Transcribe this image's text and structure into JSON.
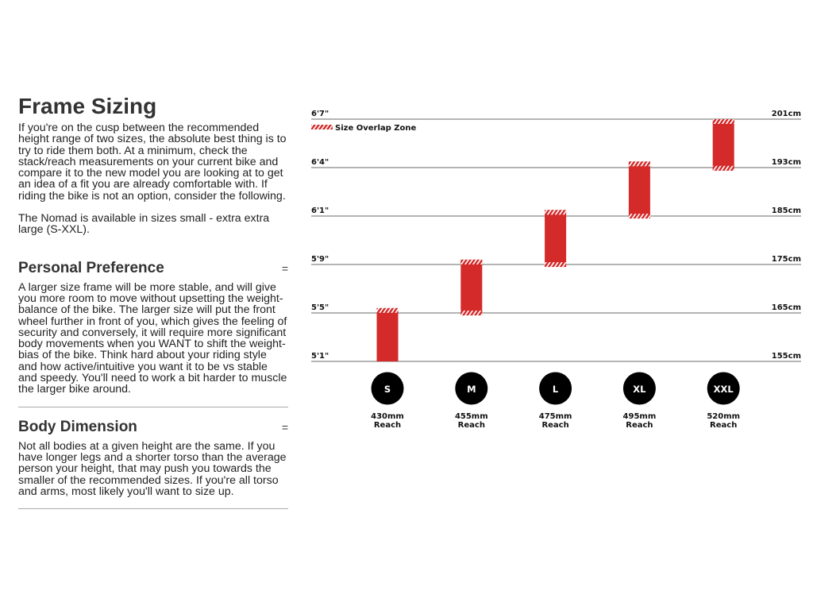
{
  "title": "Frame Sizing",
  "intro": "If you're on the cusp between the recommended height range of two sizes, the absolute best thing is to try to ride them both. At a minimum, check the stack/reach measurements on your current bike and compare it to the new model you are looking at to get an idea of a fit you are already comfortable with. If riding the bike is not an option, consider the following.",
  "intro2": "The Nomad is available in sizes small - extra extra large (S-XXL).",
  "sections": [
    {
      "title": "Personal Preference",
      "toggle": "=",
      "body": "A larger size frame will be more stable, and will give you more room to move without upsetting the weight-balance of the bike. The larger size will put the front wheel further in front of you, which gives the feeling of security and conversely, it will require more significant body movements when you WANT to shift the weight-bias of the bike. Think hard about your riding style and how active/intuitive you want it to be vs stable and speedy. You'll need to work a bit harder to muscle the larger bike around."
    },
    {
      "title": "Body Dimension",
      "toggle": "=",
      "body": "Not all bodies at a given height are the same. If you have longer legs and a shorter torso than the average person your height, that may push you towards the smaller of the recommended sizes. If you're all torso and arms, most likely you'll want to size up."
    }
  ],
  "chart_data": {
    "type": "range-bar",
    "legend": "Size Overlap Zone",
    "legend_placement": "top-left",
    "y_ticks_cm": [
      155,
      165,
      175,
      185,
      193,
      201
    ],
    "y_ticks_ft": [
      "5'1\"",
      "5'5\"",
      "5'9\"",
      "6'1\"",
      "6'4\"",
      "6'7\""
    ],
    "y_ticks_cm_labels": [
      "155cm",
      "165cm",
      "175cm",
      "185cm",
      "193cm",
      "201cm"
    ],
    "sizes": [
      {
        "size": "S",
        "reach": "430mm",
        "reach_label": "Reach",
        "min_cm": 155,
        "max_cm": 166
      },
      {
        "size": "M",
        "reach": "455mm",
        "reach_label": "Reach",
        "min_cm": 164.5,
        "max_cm": 176
      },
      {
        "size": "L",
        "reach": "475mm",
        "reach_label": "Reach",
        "min_cm": 174.5,
        "max_cm": 186
      },
      {
        "size": "XL",
        "reach": "495mm",
        "reach_label": "Reach",
        "min_cm": 184.5,
        "max_cm": 194
      },
      {
        "size": "XXL",
        "reach": "520mm",
        "reach_label": "Reach",
        "min_cm": 192.5,
        "max_cm": 201
      }
    ],
    "colors": {
      "bar": "#d42a2a",
      "grid": "#888888"
    }
  }
}
